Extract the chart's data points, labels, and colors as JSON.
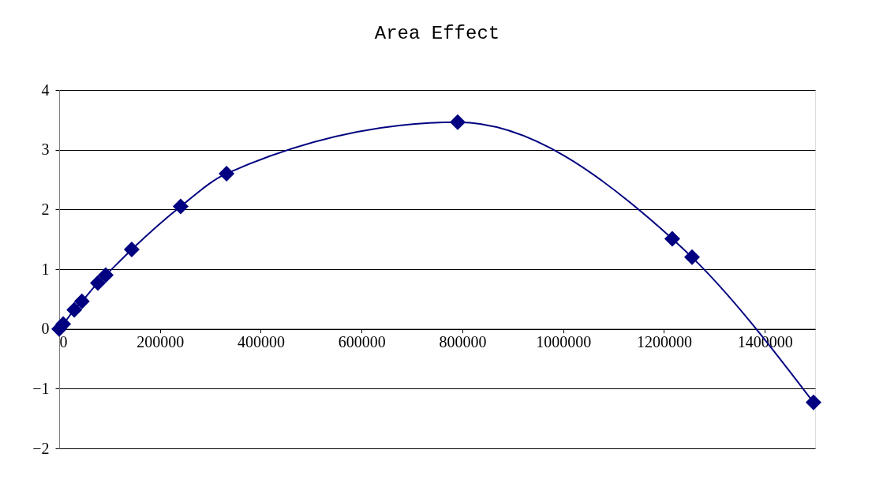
{
  "chart_data": {
    "type": "line",
    "title": "Area Effect",
    "series": [
      {
        "color": "#000080",
        "x": [
          0,
          8000,
          30000,
          45000,
          76700,
          92400,
          144000,
          241000,
          332000,
          790700,
          1216500,
          1255700,
          1496800
        ],
        "values": [
          0,
          0.08,
          0.32,
          0.46,
          0.77,
          0.9,
          1.33,
          2.05,
          2.6,
          3.46,
          1.51,
          1.2,
          -1.23
        ]
      }
    ],
    "xlim": [
      0,
      1500000
    ],
    "xticks": [
      0,
      200000,
      400000,
      600000,
      800000,
      1000000,
      1200000,
      1400000
    ],
    "ylim": [
      -2,
      4
    ],
    "yticks": [
      -2,
      -1,
      0,
      1,
      2,
      3,
      4
    ],
    "grid": "y",
    "marker": "diamond",
    "line_style": "solid"
  }
}
